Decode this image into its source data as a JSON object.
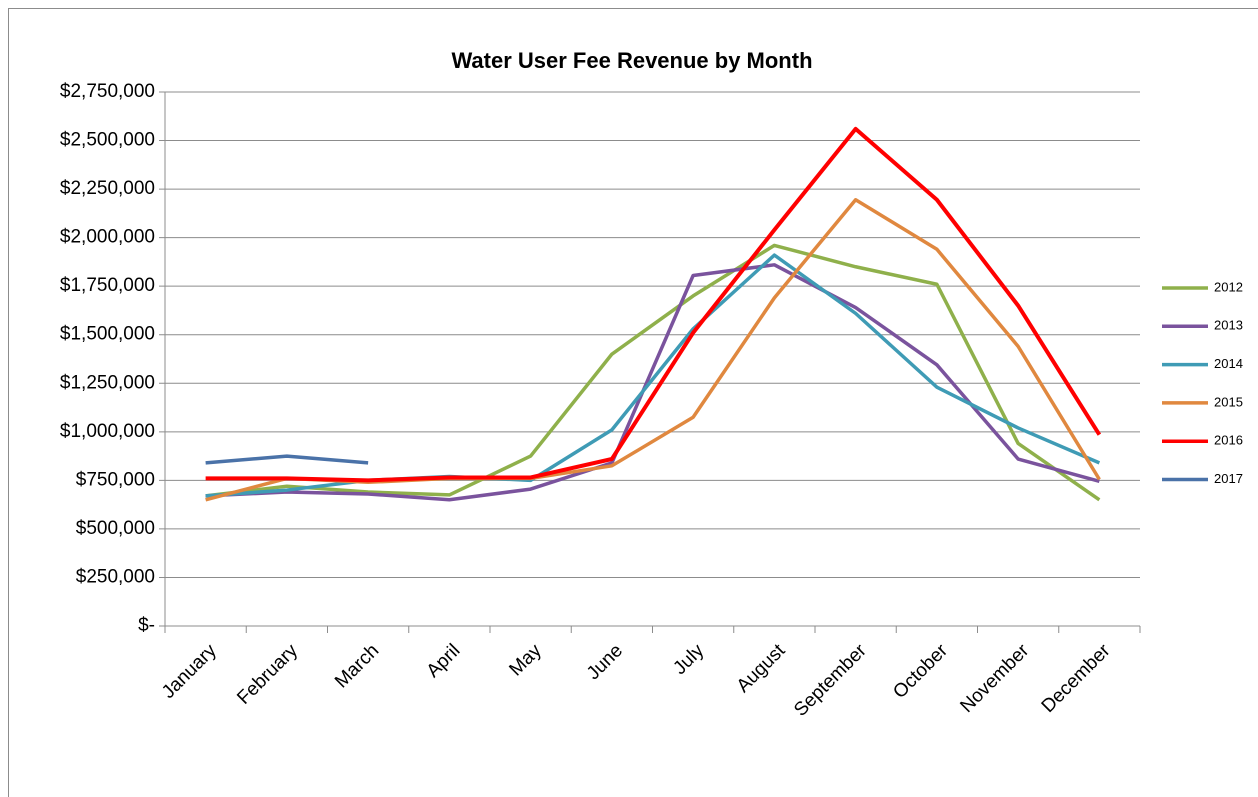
{
  "chart_data": {
    "type": "line",
    "title": "Water User Fee Revenue by Month",
    "categories": [
      "January",
      "February",
      "March",
      "April",
      "May",
      "June",
      "July",
      "August",
      "September",
      "October",
      "November",
      "December"
    ],
    "series": [
      {
        "name": "2012",
        "color": "#8fb04b",
        "values": [
          670000,
          720000,
          690000,
          675000,
          875000,
          1400000,
          1700000,
          1960000,
          1850000,
          1760000,
          940000,
          650000
        ]
      },
      {
        "name": "2013",
        "color": "#7a539d",
        "values": [
          670000,
          690000,
          680000,
          650000,
          705000,
          840000,
          1805000,
          1860000,
          1640000,
          1345000,
          860000,
          745000
        ]
      },
      {
        "name": "2014",
        "color": "#3f9bb5",
        "values": [
          670000,
          700000,
          750000,
          770000,
          750000,
          1010000,
          1530000,
          1910000,
          1610000,
          1230000,
          1020000,
          840000
        ]
      },
      {
        "name": "2015",
        "color": "#e0883f",
        "values": [
          650000,
          760000,
          740000,
          760000,
          760000,
          825000,
          1075000,
          1690000,
          2195000,
          1940000,
          1440000,
          755000
        ]
      },
      {
        "name": "2016",
        "color": "#ff0000",
        "values": [
          760000,
          760000,
          750000,
          765000,
          765000,
          860000,
          1510000,
          2040000,
          2560000,
          2195000,
          1650000,
          985000
        ]
      },
      {
        "name": "2017",
        "color": "#4a72a8",
        "values": [
          840000,
          875000,
          840000,
          null,
          null,
          null,
          null,
          null,
          null,
          null,
          null,
          null
        ]
      }
    ],
    "ylim": [
      0,
      2750000
    ],
    "yticks": [
      {
        "value": 0,
        "label": "$-"
      },
      {
        "value": 250000,
        "label": "$250,000"
      },
      {
        "value": 500000,
        "label": "$500,000"
      },
      {
        "value": 750000,
        "label": "$750,000"
      },
      {
        "value": 1000000,
        "label": "$1,000,000"
      },
      {
        "value": 1250000,
        "label": "$1,250,000"
      },
      {
        "value": 1500000,
        "label": "$1,500,000"
      },
      {
        "value": 1750000,
        "label": "$1,750,000"
      },
      {
        "value": 2000000,
        "label": "$2,000,000"
      },
      {
        "value": 2250000,
        "label": "$2,250,000"
      },
      {
        "value": 2500000,
        "label": "$2,500,000"
      },
      {
        "value": 2750000,
        "label": "$2,750,000"
      }
    ],
    "grid": true,
    "legend": "right"
  }
}
